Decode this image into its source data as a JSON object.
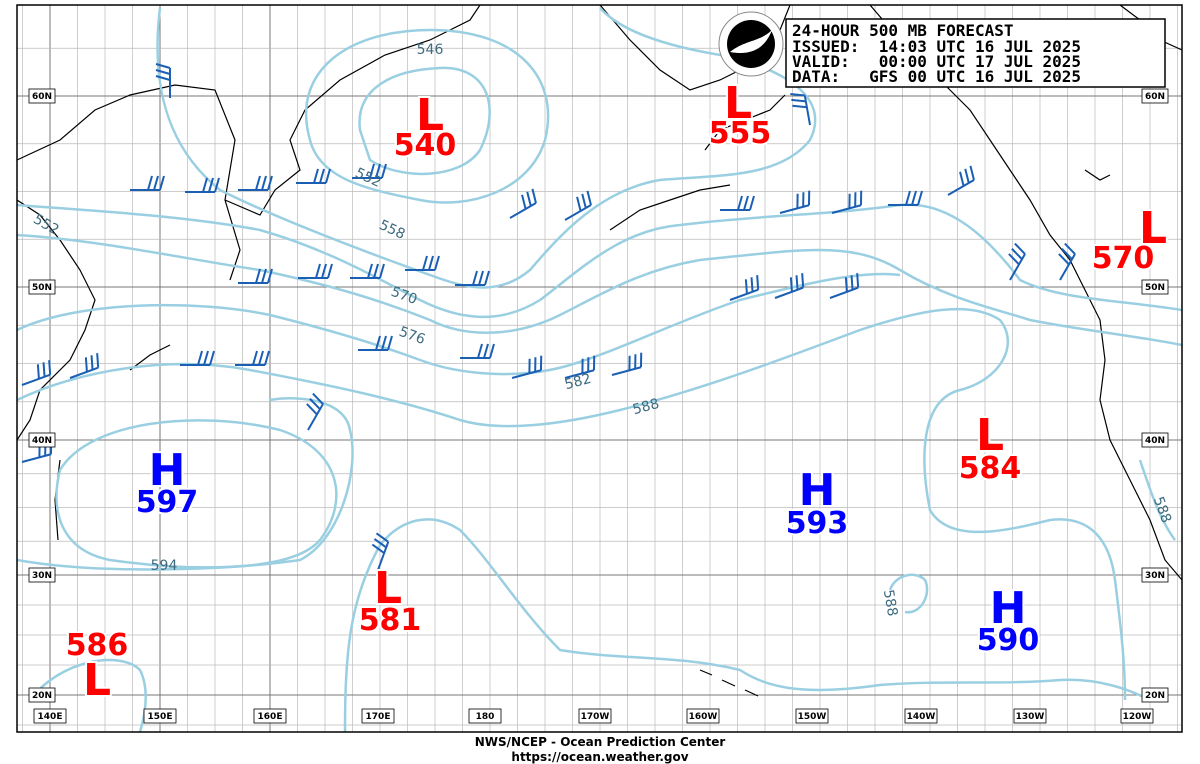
{
  "header": {
    "lines": [
      "24-HOUR 500 MB FORECAST",
      "ISSUED:  14:03 UTC 16 JUL 2025",
      "VALID:   00:00 UTC 17 JUL 2025",
      "DATA:   GFS 00 UTC 16 JUL 2025"
    ]
  },
  "centers": [
    {
      "type": "L",
      "value": 540
    },
    {
      "type": "L",
      "value": 555
    },
    {
      "type": "L",
      "value": 570
    },
    {
      "type": "L",
      "value": 584
    },
    {
      "type": "H",
      "value": 597
    },
    {
      "type": "H",
      "value": 593
    },
    {
      "type": "L",
      "value": 581
    },
    {
      "type": "H",
      "value": 590
    },
    {
      "type": "L",
      "value": 586
    }
  ],
  "contour_labels": [
    "546",
    "552",
    "558",
    "570",
    "576",
    "582",
    "588",
    "594",
    "588",
    "588",
    "552"
  ],
  "lat_labels": [
    "60N",
    "50N",
    "40N",
    "30N",
    "20N"
  ],
  "lon_labels": [
    "140E",
    "150E",
    "160E",
    "170E",
    "180",
    "170W",
    "160W",
    "150W",
    "140W",
    "130W",
    "120W"
  ],
  "footer": {
    "lines": [
      "NWS/NCEP - Ocean Prediction Center",
      "https://ocean.weather.gov"
    ]
  }
}
